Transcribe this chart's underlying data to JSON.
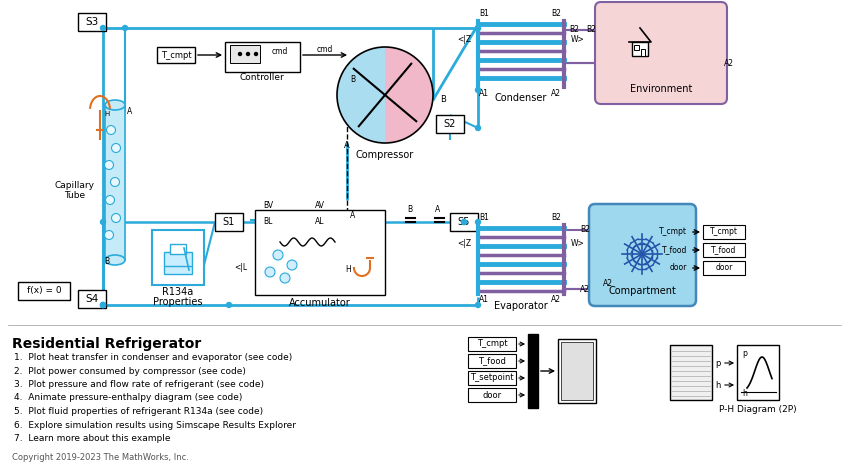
{
  "bg_color": "#ffffff",
  "cyan": "#2AABDB",
  "purple": "#8060A0",
  "orange": "#E07020",
  "black": "#000000",
  "main_title": "Residential Refrigerator",
  "bullet_points": [
    "1.  Plot heat transfer in condenser and evaporator (see code)",
    "2.  Plot power consumed by compressor (see code)",
    "3.  Plot pressure and flow rate of refrigerant (see code)",
    "4.  Animate pressure-enthalpy diagram (see code)",
    "5.  Plot fluid properties of refrigerant R134a (see code)",
    "6.  Explore simulation results using Simscape Results Explorer",
    "7.  Learn more about this example"
  ],
  "copyright": "Copyright 2019-2023 The MathWorks, Inc."
}
